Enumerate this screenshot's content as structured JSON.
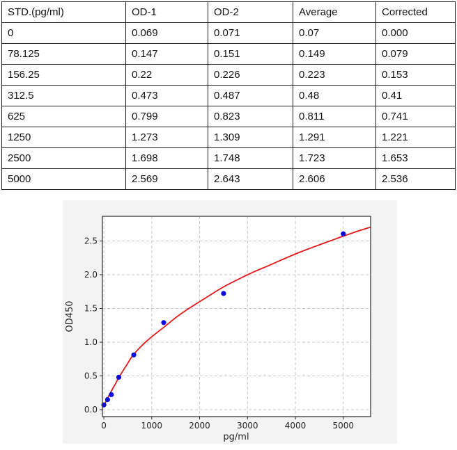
{
  "table": {
    "headers": [
      "STD.(pg/ml)",
      "OD-1",
      "OD-2",
      "Average",
      "Corrected"
    ],
    "rows": [
      [
        "0",
        "0.069",
        "0.071",
        "0.07",
        "0.000"
      ],
      [
        "78.125",
        "0.147",
        "0.151",
        "0.149",
        "0.079"
      ],
      [
        "156.25",
        "0.22",
        "0.226",
        "0.223",
        "0.153"
      ],
      [
        "312.5",
        "0.473",
        "0.487",
        "0.48",
        "0.41"
      ],
      [
        "625",
        "0.799",
        "0.823",
        "0.811",
        "0.741"
      ],
      [
        "1250",
        "1.273",
        "1.309",
        "1.291",
        "1.221"
      ],
      [
        "2500",
        "1.698",
        "1.748",
        "1.723",
        "1.653"
      ],
      [
        "5000",
        "2.569",
        "2.643",
        "2.606",
        "2.536"
      ]
    ]
  },
  "chart_data": {
    "type": "scatter",
    "title": "",
    "xlabel": "pg/ml",
    "ylabel": "OD450",
    "xlim": [
      -30,
      5570
    ],
    "ylim": [
      -0.103,
      2.866
    ],
    "grid": true,
    "x_ticks": [
      0,
      1000,
      2000,
      3000,
      4000,
      5000
    ],
    "x_tick_labels": [
      "0",
      "1000",
      "2000",
      "3000",
      "4000",
      "5000"
    ],
    "y_ticks": [
      0.0,
      0.5,
      1.0,
      1.5,
      2.0,
      2.5
    ],
    "y_tick_labels": [
      "0.0",
      "0.5",
      "1.0",
      "1.5",
      "2.0",
      "2.5"
    ],
    "points": {
      "name": "standard-averages",
      "x": [
        0,
        78.125,
        156.25,
        312.5,
        625,
        1250,
        2500,
        5000
      ],
      "y": [
        0.07,
        0.149,
        0.223,
        0.48,
        0.811,
        1.291,
        1.723,
        2.606
      ],
      "color": "#0a0adc"
    },
    "fit_curve": {
      "name": "fitted-standard-curve",
      "color": "#e01919",
      "x": [
        0,
        40,
        78,
        156,
        230,
        312,
        470,
        625,
        900,
        1250,
        1560,
        1875,
        2200,
        2500,
        2800,
        3125,
        3440,
        3750,
        4060,
        4375,
        4700,
        5000,
        5300,
        5570
      ],
      "y": [
        0.06,
        0.115,
        0.17,
        0.275,
        0.368,
        0.475,
        0.655,
        0.82,
        1.02,
        1.22,
        1.395,
        1.545,
        1.69,
        1.82,
        1.93,
        2.04,
        2.135,
        2.232,
        2.325,
        2.41,
        2.495,
        2.572,
        2.645,
        2.705
      ]
    },
    "figure_bg": "#f3f3f3",
    "plot_bg": "#ffffff",
    "grid_color": "#c9c9c9",
    "spine_color": "#3a3a3a",
    "tick_color": "#262626"
  }
}
